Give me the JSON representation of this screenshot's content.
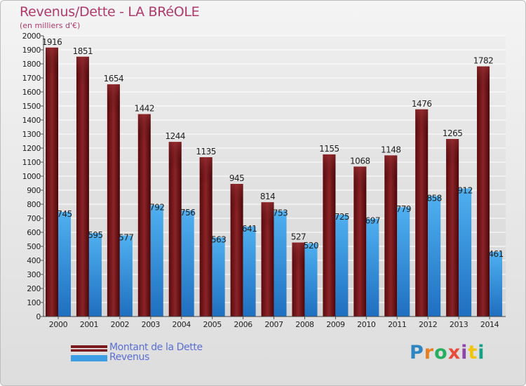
{
  "chart_data": {
    "type": "bar",
    "title": "Revenus/Dette - LA BRéOLE",
    "subtitle": "(en milliers d'€)",
    "categories": [
      "2000",
      "2001",
      "2002",
      "2003",
      "2004",
      "2005",
      "2006",
      "2007",
      "2008",
      "2009",
      "2010",
      "2011",
      "2012",
      "2013",
      "2014"
    ],
    "series": [
      {
        "name": "Montant de la Dette",
        "color": "#7a1a1e",
        "values": [
          1916,
          1851,
          1654,
          1442,
          1244,
          1135,
          945,
          814,
          527,
          1155,
          1068,
          1148,
          1476,
          1265,
          1782
        ]
      },
      {
        "name": "Revenus",
        "color": "#3d9ee6",
        "values": [
          745,
          595,
          577,
          792,
          756,
          563,
          641,
          753,
          520,
          725,
          697,
          779,
          858,
          912,
          461
        ]
      }
    ],
    "ylim": [
      0,
      2000
    ],
    "yticks": [
      0,
      100,
      200,
      300,
      400,
      500,
      600,
      700,
      800,
      900,
      1000,
      1100,
      1200,
      1300,
      1400,
      1500,
      1600,
      1700,
      1800,
      1900,
      2000
    ],
    "grid": true
  },
  "legend": {
    "debt_label": "Montant de la Dette",
    "revenue_label": "Revenus"
  },
  "logo": {
    "letters": [
      "P",
      "r",
      "o",
      "x",
      "i",
      "t",
      "i"
    ],
    "colors": [
      "#2e86c1",
      "#e67e22",
      "#27ae60",
      "#e74c3c",
      "#8e44ad",
      "#f1c40f",
      "#16a085"
    ]
  }
}
